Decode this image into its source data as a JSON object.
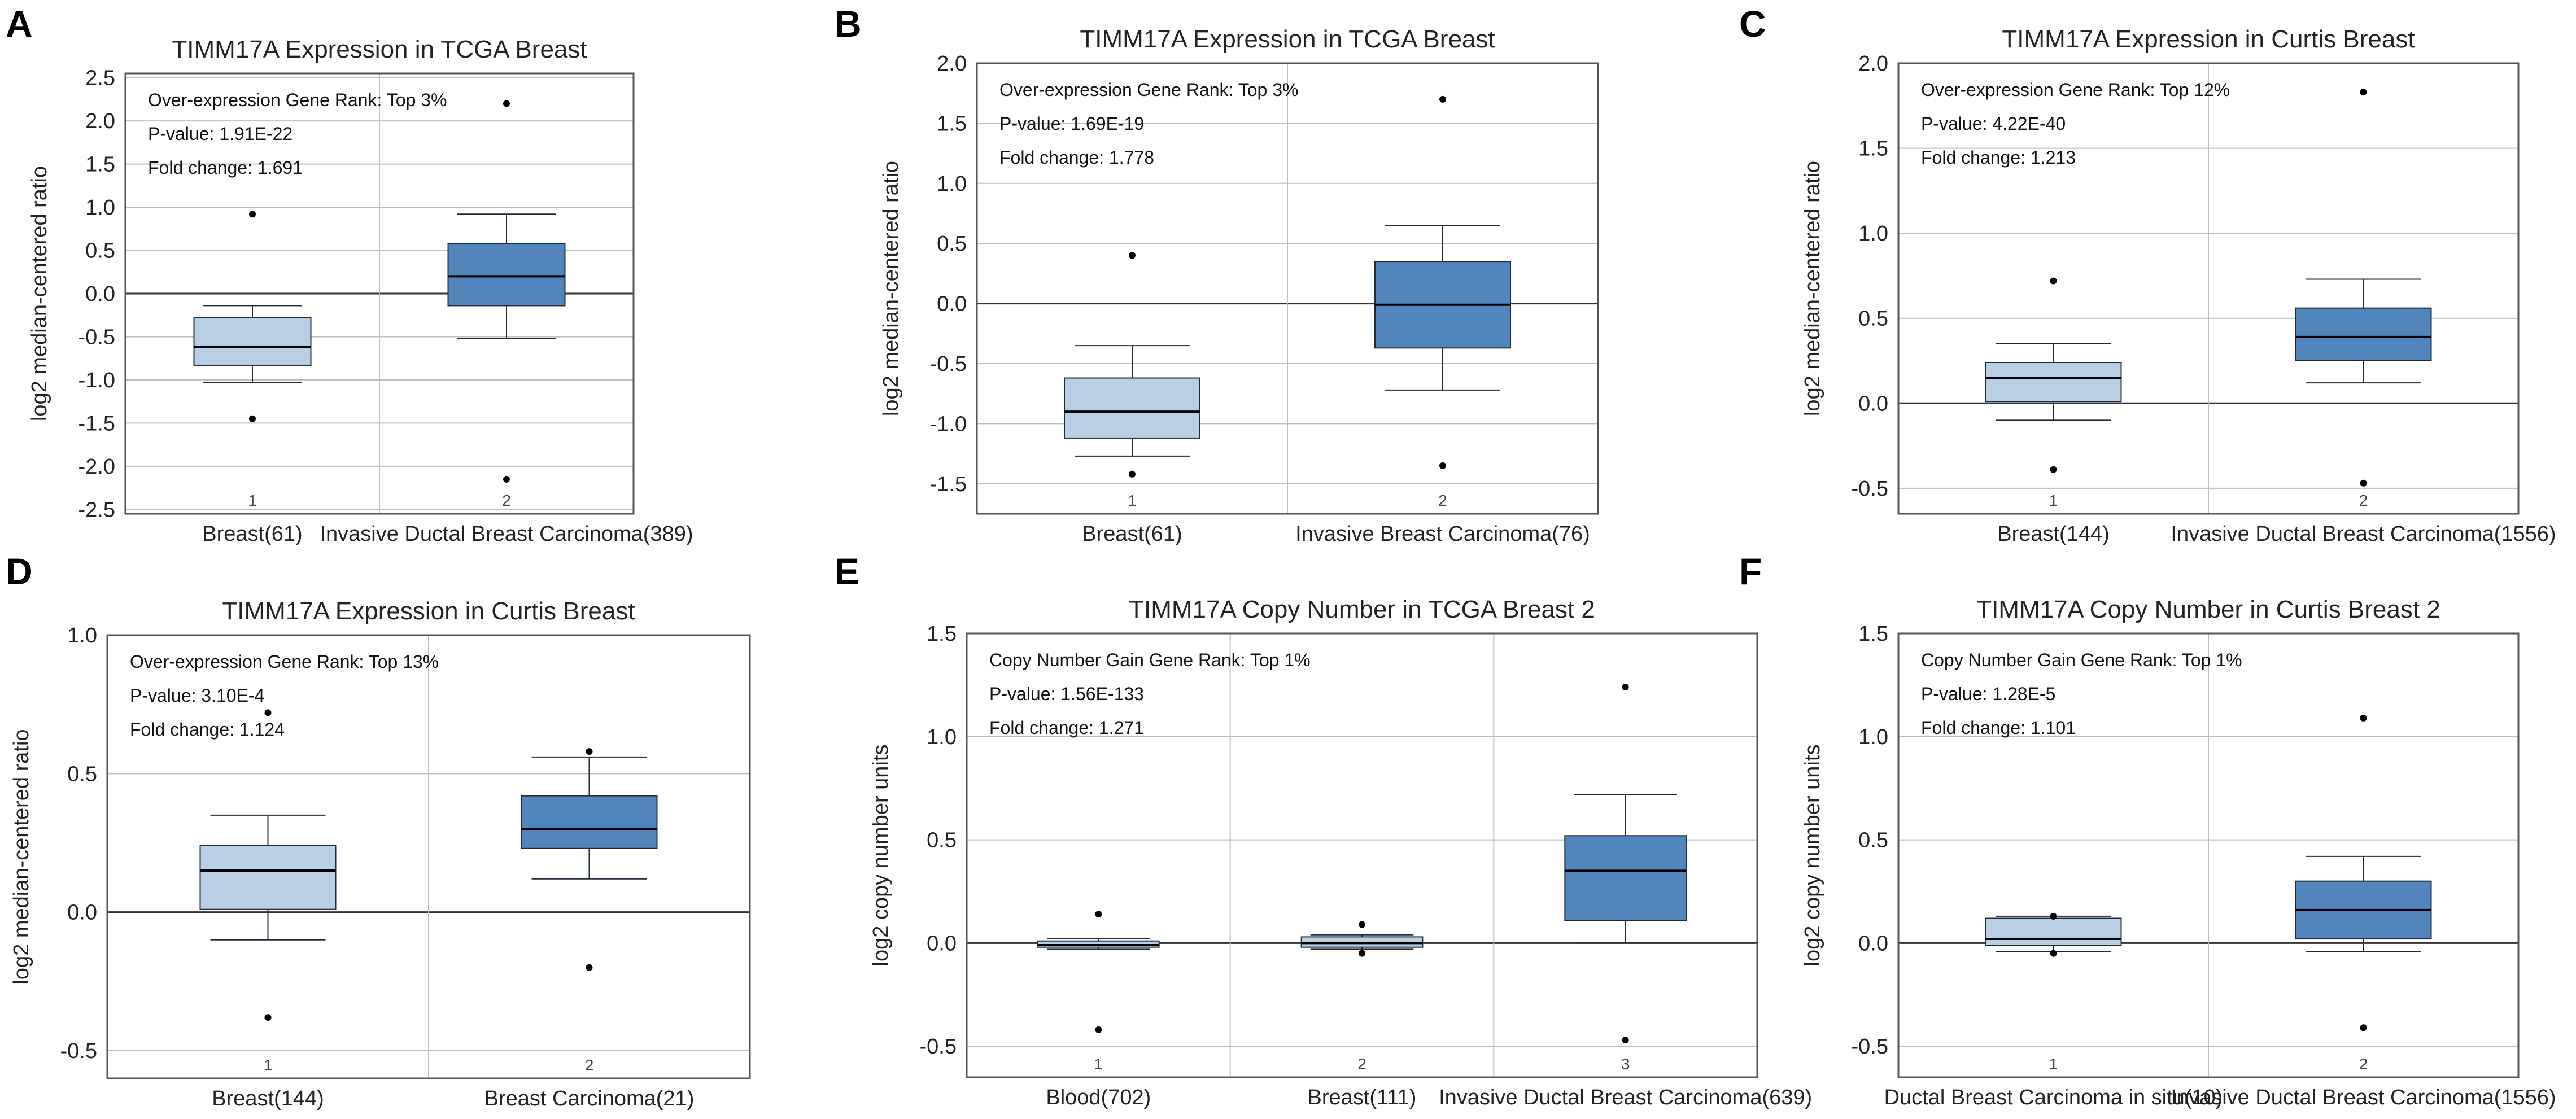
{
  "chart_data": [
    {
      "panel": "A",
      "type": "box",
      "title": "TIMM17A Expression in TCGA Breast",
      "ylabel": "log2 median-centered ratio",
      "ylim": [
        -2.55,
        2.55
      ],
      "yticks": [
        -2.5,
        -2.0,
        -1.5,
        -1.0,
        -0.5,
        0.0,
        0.5,
        1.0,
        1.5,
        2.0,
        2.5
      ],
      "ytick_labels": [
        "-2.5",
        "-2.0",
        "-1.5",
        "-1.0",
        "-0.5",
        "0.0",
        "0.5",
        "1.0",
        "1.5",
        "2.0",
        "2.5"
      ],
      "annotations": [
        "Over-expression Gene Rank: Top 3%",
        "P-value: 1.91E-22",
        "Fold change: 1.691"
      ],
      "categories": [
        "Breast(61)",
        "Invasive Ductal Breast Carcinoma(389)"
      ],
      "numbers": [
        "1",
        "2"
      ],
      "boxes": [
        {
          "min": -1.03,
          "q1": -0.83,
          "median": -0.62,
          "q3": -0.28,
          "max": -0.14,
          "outliers": [
            0.92,
            -1.45
          ]
        },
        {
          "min": -0.52,
          "q1": -0.14,
          "median": 0.2,
          "q3": 0.58,
          "max": 0.92,
          "outliers": [
            2.2,
            -2.15
          ]
        }
      ]
    },
    {
      "panel": "B",
      "type": "box",
      "title": "TIMM17A Expression in TCGA Breast",
      "ylabel": "log2 median-centered ratio",
      "ylim": [
        -1.75,
        2.0
      ],
      "yticks": [
        -1.5,
        -1.0,
        -0.5,
        0.0,
        0.5,
        1.0,
        1.5,
        2.0
      ],
      "ytick_labels": [
        "-1.5",
        "-1.0",
        "-0.5",
        "0.0",
        "0.5",
        "1.0",
        "1.5",
        "2.0"
      ],
      "annotations": [
        "Over-expression Gene Rank: Top 3%",
        "P-value: 1.69E-19",
        "Fold change: 1.778"
      ],
      "categories": [
        "Breast(61)",
        "Invasive Breast Carcinoma(76)"
      ],
      "numbers": [
        "1",
        "2"
      ],
      "boxes": [
        {
          "min": -1.27,
          "q1": -1.12,
          "median": -0.9,
          "q3": -0.62,
          "max": -0.35,
          "outliers": [
            0.4,
            -1.42
          ]
        },
        {
          "min": -0.72,
          "q1": -0.37,
          "median": -0.01,
          "q3": 0.35,
          "max": 0.65,
          "outliers": [
            1.7,
            -1.35
          ]
        }
      ]
    },
    {
      "panel": "C",
      "type": "box",
      "title": "TIMM17A Expression in Curtis Breast",
      "ylabel": "log2 median-centered ratio",
      "ylim": [
        -0.65,
        2.0
      ],
      "yticks": [
        -0.5,
        0.0,
        0.5,
        1.0,
        1.5,
        2.0
      ],
      "ytick_labels": [
        "-0.5",
        "0.0",
        "0.5",
        "1.0",
        "1.5",
        "2.0"
      ],
      "annotations": [
        "Over-expression Gene Rank: Top 12%",
        "P-value: 4.22E-40",
        "Fold change: 1.213"
      ],
      "categories": [
        "Breast(144)",
        "Invasive Ductal Breast Carcinoma(1556)"
      ],
      "numbers": [
        "1",
        "2"
      ],
      "boxes": [
        {
          "min": -0.1,
          "q1": 0.01,
          "median": 0.15,
          "q3": 0.24,
          "max": 0.35,
          "outliers": [
            0.72,
            -0.39
          ]
        },
        {
          "min": 0.12,
          "q1": 0.25,
          "median": 0.39,
          "q3": 0.56,
          "max": 0.73,
          "outliers": [
            1.83,
            -0.47
          ]
        }
      ]
    },
    {
      "panel": "D",
      "type": "box",
      "title": "TIMM17A Expression in Curtis Breast",
      "ylabel": "log2 median-centered ratio",
      "ylim": [
        -0.6,
        1.0
      ],
      "yticks": [
        -0.5,
        0.0,
        0.5,
        1.0
      ],
      "ytick_labels": [
        "-0.5",
        "0.0",
        "0.5",
        "1.0"
      ],
      "annotations": [
        "Over-expression Gene Rank: Top 13%",
        "P-value: 3.10E-4",
        "Fold change: 1.124"
      ],
      "categories": [
        "Breast(144)",
        "Breast Carcinoma(21)"
      ],
      "numbers": [
        "1",
        "2"
      ],
      "boxes": [
        {
          "min": -0.1,
          "q1": 0.01,
          "median": 0.15,
          "q3": 0.24,
          "max": 0.35,
          "outliers": [
            0.72,
            -0.38
          ]
        },
        {
          "min": 0.12,
          "q1": 0.23,
          "median": 0.3,
          "q3": 0.42,
          "max": 0.56,
          "outliers": [
            0.58,
            -0.2
          ]
        }
      ]
    },
    {
      "panel": "E",
      "type": "box",
      "title": "TIMM17A Copy Number in TCGA Breast 2",
      "ylabel": "log2 copy number units",
      "ylim": [
        -0.65,
        1.5
      ],
      "yticks": [
        -0.5,
        0.0,
        0.5,
        1.0,
        1.5
      ],
      "ytick_labels": [
        "-0.5",
        "0.0",
        "0.5",
        "1.0",
        "1.5"
      ],
      "annotations": [
        "Copy Number Gain Gene Rank: Top 1%",
        "P-value: 1.56E-133",
        "Fold change: 1.271"
      ],
      "categories": [
        "Blood(702)",
        "Breast(111)",
        "Invasive Ductal Breast Carcinoma(639)"
      ],
      "numbers": [
        "1",
        "2",
        "3"
      ],
      "boxes": [
        {
          "min": -0.03,
          "q1": -0.02,
          "median": -0.01,
          "q3": 0.01,
          "max": 0.02,
          "outliers": [
            0.14,
            -0.42
          ]
        },
        {
          "min": -0.03,
          "q1": -0.02,
          "median": 0.0,
          "q3": 0.03,
          "max": 0.04,
          "outliers": [
            0.09,
            -0.05
          ]
        },
        {
          "min": 0.0,
          "q1": 0.11,
          "median": 0.35,
          "q3": 0.52,
          "max": 0.72,
          "outliers": [
            1.24,
            -0.47
          ]
        }
      ]
    },
    {
      "panel": "F",
      "type": "box",
      "title": "TIMM17A Copy Number in Curtis Breast 2",
      "ylabel": "log2 copy number units",
      "ylim": [
        -0.65,
        1.5
      ],
      "yticks": [
        -0.5,
        0.0,
        0.5,
        1.0,
        1.5
      ],
      "ytick_labels": [
        "-0.5",
        "0.0",
        "0.5",
        "1.0",
        "1.5"
      ],
      "annotations": [
        "Copy Number Gain Gene Rank: Top 1%",
        "P-value: 1.28E-5",
        "Fold change: 1.101"
      ],
      "categories": [
        "Ductal Breast Carcinoma in situ(10)",
        "Invasive Ductal Breast Carcinoma(1556)"
      ],
      "numbers": [
        "1",
        "2"
      ],
      "boxes": [
        {
          "min": -0.04,
          "q1": -0.01,
          "median": 0.02,
          "q3": 0.12,
          "max": 0.13,
          "outliers": [
            0.13,
            -0.05
          ]
        },
        {
          "min": -0.04,
          "q1": 0.02,
          "median": 0.16,
          "q3": 0.3,
          "max": 0.42,
          "outliers": [
            1.09,
            -0.41
          ]
        }
      ]
    }
  ],
  "colors": {
    "group1_fill": "#b9cfe6",
    "group2_fill": "#5185bc",
    "box_stroke": "#1d2a38",
    "frame": "#555555",
    "grid": "#bdbdbd",
    "zero_line": "#333333"
  }
}
